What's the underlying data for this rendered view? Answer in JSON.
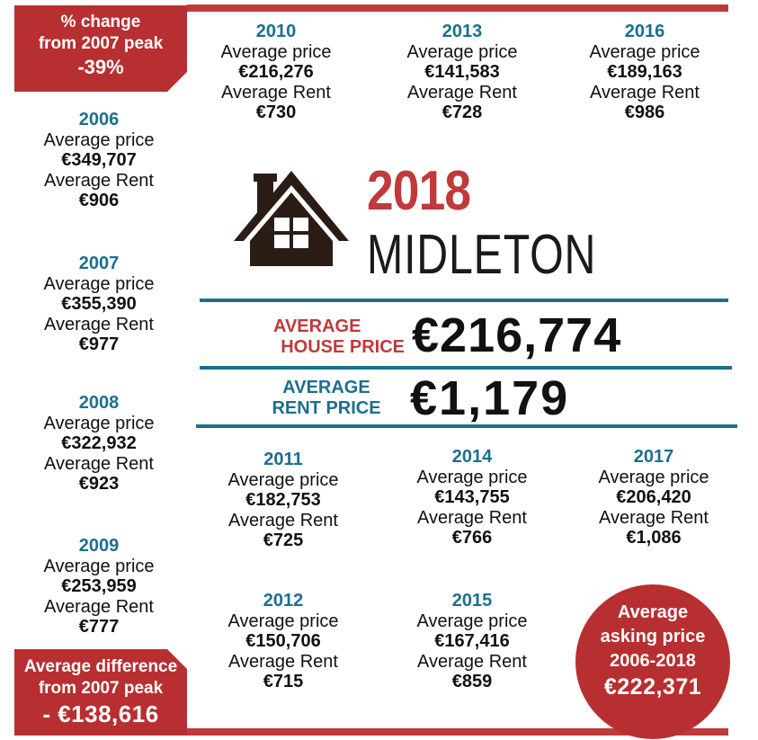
{
  "header_flag": {
    "line1": "% change",
    "line2": "from 2007 peak",
    "value": "-39%"
  },
  "footer_flag": {
    "line1": "Average difference",
    "line2": "from 2007 peak",
    "value": "- €138,616"
  },
  "title": {
    "year": "2018",
    "town": "MIDLETON"
  },
  "average_house": {
    "label_line1": "AVERAGE",
    "label_line2": "HOUSE PRICE",
    "value": "€216,774"
  },
  "average_rent": {
    "label_line1": "AVERAGE",
    "label_line2": "RENT PRICE",
    "value": "€1,179"
  },
  "asking_price": {
    "line1": "Average",
    "line2": "asking price",
    "line3": "2006-2018",
    "value": "€222,371"
  },
  "years": {
    "y2006": {
      "year": "2006",
      "price_label": "Average price",
      "price": "€349,707",
      "rent_label": "Average Rent",
      "rent": "€906"
    },
    "y2007": {
      "year": "2007",
      "price_label": "Average price",
      "price": "€355,390",
      "rent_label": "Average Rent",
      "rent": "€977"
    },
    "y2008": {
      "year": "2008",
      "price_label": "Average price",
      "price": "€322,932",
      "rent_label": "Average Rent",
      "rent": "€923"
    },
    "y2009": {
      "year": "2009",
      "price_label": "Average price",
      "price": "€253,959",
      "rent_label": "Average Rent",
      "rent": "€777"
    },
    "y2010": {
      "year": "2010",
      "price_label": "Average price",
      "price": "€216,276",
      "rent_label": "Average Rent",
      "rent": "€730"
    },
    "y2011": {
      "year": "2011",
      "price_label": "Average price",
      "price": "€182,753",
      "rent_label": "Average Rent",
      "rent": "€725"
    },
    "y2012": {
      "year": "2012",
      "price_label": "Average price",
      "price": "€150,706",
      "rent_label": "Average Rent",
      "rent": "€715"
    },
    "y2013": {
      "year": "2013",
      "price_label": "Average price",
      "price": "€141,583",
      "rent_label": "Average Rent",
      "rent": "€728"
    },
    "y2014": {
      "year": "2014",
      "price_label": "Average price",
      "price": "€143,755",
      "rent_label": "Average Rent",
      "rent": "€766"
    },
    "y2015": {
      "year": "2015",
      "price_label": "Average price",
      "price": "€167,416",
      "rent_label": "Average Rent",
      "rent": "€859"
    },
    "y2016": {
      "year": "2016",
      "price_label": "Average price",
      "price": "€189,163",
      "rent_label": "Average Rent",
      "rent": "€986"
    },
    "y2017": {
      "year": "2017",
      "price_label": "Average price",
      "price": "€206,420",
      "rent_label": "Average Rent",
      "rent": "€1,086"
    }
  },
  "colors": {
    "accent_red": "#b82f31",
    "accent_teal": "#1c6f8d",
    "house_brown": "#2b1d16"
  },
  "icons": {
    "house": "house-icon"
  }
}
